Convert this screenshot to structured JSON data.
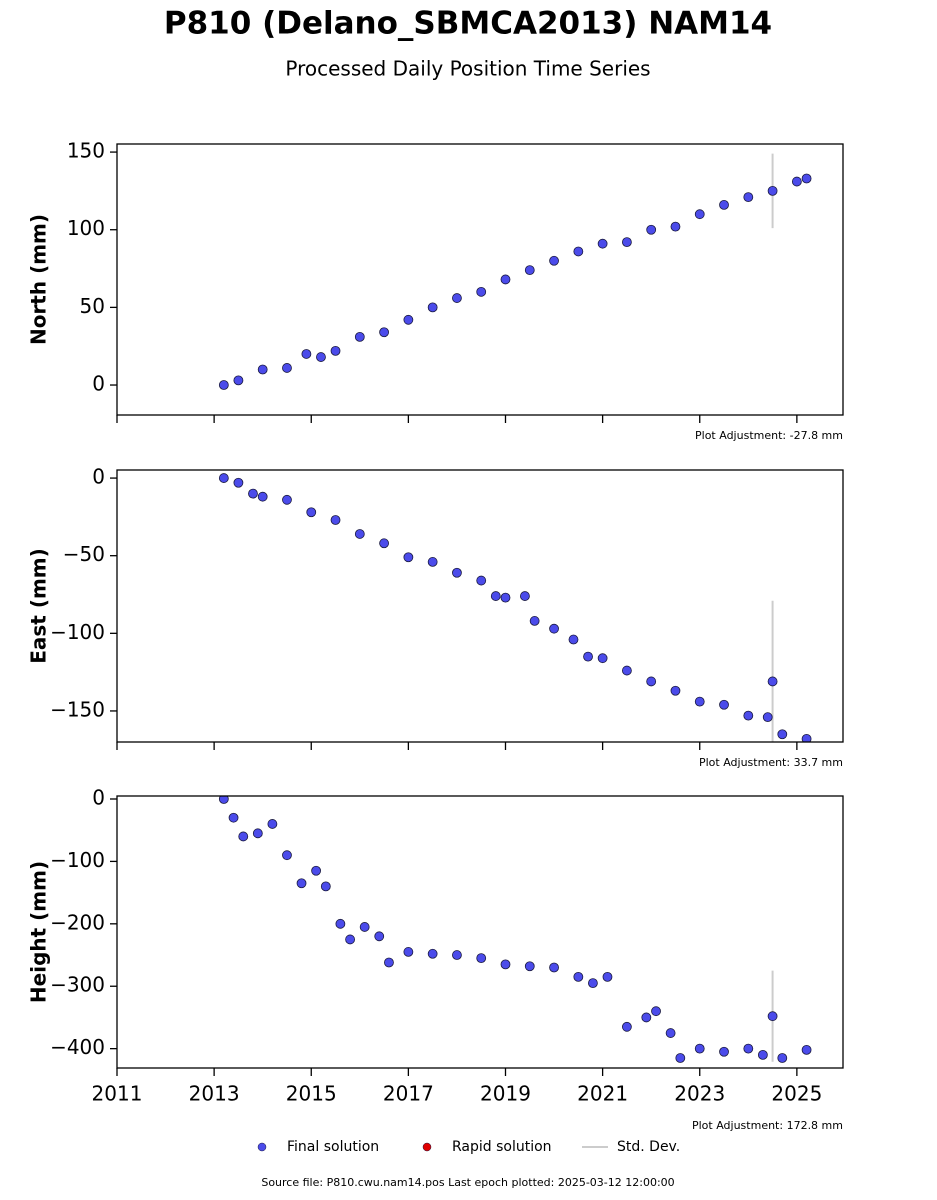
{
  "title": "P810 (Delano_SBMCA2013) NAM14",
  "subtitle": "Processed Daily Position Time Series",
  "legend": [
    {
      "name": "Final solution",
      "color": "#4b4bea",
      "kind": "dot"
    },
    {
      "name": "Rapid solution",
      "color": "#e00000",
      "kind": "dot"
    },
    {
      "name": "Std. Dev.",
      "color": "#cccccc",
      "kind": "line"
    }
  ],
  "footer": "Source file: P810.cwu.nam14.pos  Last epoch plotted: 2025-03-12 12:00:00",
  "chart_data": [
    {
      "type": "scatter",
      "ylabel": "North (mm)",
      "annotation": "Plot Adjustment: -27.8 mm",
      "color": "#4b4bea",
      "error_color": "#cccccc",
      "xlim": [
        2011,
        2025.95
      ],
      "xticks": [
        2011,
        2013,
        2015,
        2017,
        2019,
        2021,
        2023,
        2025
      ],
      "ylim": [
        -19.3,
        155.2
      ],
      "yticks": [
        0,
        50,
        100,
        150
      ],
      "x": [
        2013.2,
        2013.5,
        2014,
        2014.5,
        2014.9,
        2015.2,
        2015.5,
        2016,
        2016.5,
        2017,
        2017.5,
        2018,
        2018.5,
        2019,
        2019.5,
        2020,
        2020.5,
        2021,
        2021.5,
        2022,
        2022.5,
        2023,
        2023.5,
        2024,
        2024.5,
        2025,
        2025.2
      ],
      "values": [
        0,
        3,
        10,
        11,
        20,
        18,
        22,
        31,
        34,
        42,
        50,
        56,
        60,
        68,
        74,
        80,
        86,
        91,
        92,
        100,
        102,
        110,
        116,
        121,
        125,
        131,
        133
      ],
      "errors": [
        null,
        null,
        null,
        null,
        null,
        null,
        null,
        null,
        null,
        null,
        null,
        null,
        null,
        null,
        null,
        null,
        null,
        null,
        null,
        null,
        null,
        null,
        null,
        null,
        24,
        null,
        null
      ]
    },
    {
      "type": "scatter",
      "ylabel": "East (mm)",
      "annotation": "Plot Adjustment: 33.7 mm",
      "color": "#4b4bea",
      "error_color": "#cccccc",
      "xlim": [
        2011,
        2025.95
      ],
      "xticks": [
        2011,
        2013,
        2015,
        2017,
        2019,
        2021,
        2023,
        2025
      ],
      "ylim": [
        -170,
        5.2
      ],
      "yticks": [
        0,
        {
          "value": -50,
          "label": "−50"
        },
        {
          "value": -100,
          "label": "−100"
        },
        {
          "value": -150,
          "label": "−150"
        }
      ],
      "x": [
        2013.2,
        2013.5,
        2013.8,
        2014,
        2014.5,
        2015,
        2015.5,
        2016,
        2016.5,
        2017,
        2017.5,
        2018,
        2018.5,
        2018.8,
        2019,
        2019.4,
        2019.6,
        2020,
        2020.4,
        2020.7,
        2021,
        2021.5,
        2022,
        2022.5,
        2023,
        2023.5,
        2024,
        2024.4,
        2024.5,
        2024.7,
        2025.2
      ],
      "values": [
        0,
        -3,
        -10,
        -12,
        -14,
        -22,
        -27,
        -36,
        -42,
        -51,
        -54,
        -61,
        -66,
        -76,
        -77,
        -76,
        -92,
        -97,
        -104,
        -115,
        -116,
        -124,
        -131,
        -137,
        -144,
        -146,
        -153,
        -154,
        -131,
        -165,
        -168
      ],
      "errors": [
        null,
        null,
        null,
        null,
        null,
        null,
        null,
        null,
        null,
        null,
        null,
        null,
        null,
        null,
        null,
        null,
        null,
        null,
        null,
        null,
        null,
        null,
        null,
        null,
        null,
        null,
        null,
        null,
        52,
        null,
        null
      ]
    },
    {
      "type": "scatter",
      "ylabel": "Height (mm)",
      "annotation": "Plot Adjustment: 172.8 mm",
      "color": "#4b4bea",
      "error_color": "#cccccc",
      "xlim": [
        2011,
        2025.95
      ],
      "xticks": [
        2011,
        2013,
        2015,
        2017,
        2019,
        2021,
        2023,
        2025
      ],
      "ylim": [
        -431,
        4.8
      ],
      "yticks": [
        0,
        {
          "value": -100,
          "label": "−100"
        },
        {
          "value": -200,
          "label": "−200"
        },
        {
          "value": -300,
          "label": "−300"
        },
        {
          "value": -400,
          "label": "−400"
        }
      ],
      "x": [
        2013.2,
        2013.4,
        2013.6,
        2013.9,
        2014.2,
        2014.5,
        2014.8,
        2015.1,
        2015.3,
        2015.6,
        2015.8,
        2016.1,
        2016.4,
        2016.6,
        2017,
        2017.5,
        2018,
        2018.5,
        2019,
        2019.5,
        2020,
        2020.5,
        2020.8,
        2021.1,
        2021.5,
        2021.9,
        2022.1,
        2022.4,
        2022.6,
        2023,
        2023.5,
        2024,
        2024.3,
        2024.5,
        2024.7,
        2025.2
      ],
      "values": [
        0,
        -30,
        -60,
        -55,
        -40,
        -90,
        -135,
        -115,
        -140,
        -200,
        -225,
        -205,
        -220,
        -262,
        -245,
        -248,
        -250,
        -255,
        -265,
        -268,
        -270,
        -285,
        -295,
        -285,
        -365,
        -350,
        -340,
        -375,
        -415,
        -400,
        -405,
        -400,
        -410,
        -348,
        -415,
        -402
      ],
      "errors": [
        null,
        null,
        null,
        null,
        null,
        null,
        null,
        null,
        null,
        null,
        null,
        null,
        null,
        null,
        null,
        null,
        null,
        null,
        null,
        null,
        null,
        null,
        null,
        null,
        null,
        null,
        null,
        null,
        null,
        null,
        null,
        null,
        null,
        73,
        null,
        null
      ]
    }
  ]
}
